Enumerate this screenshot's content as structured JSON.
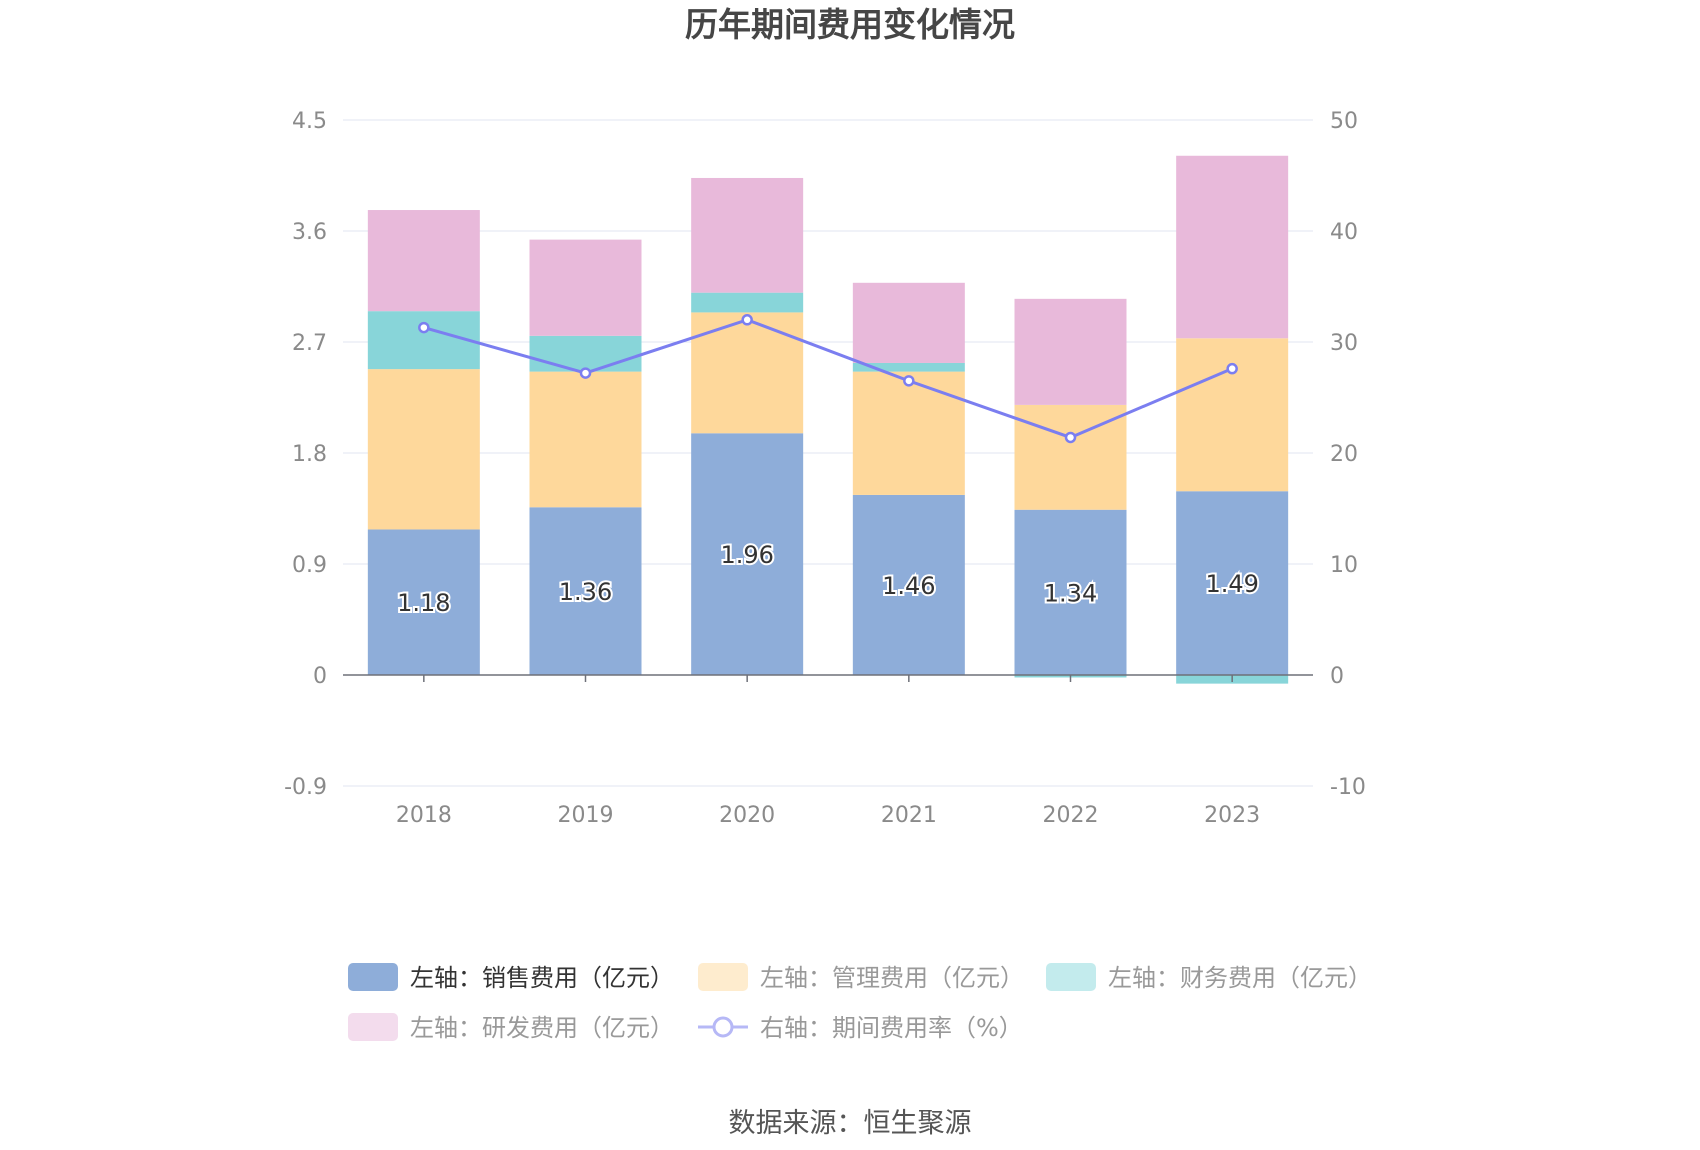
{
  "chart_data": {
    "type": "bar",
    "title": "历年期间费用变化情况",
    "categories": [
      "2018",
      "2019",
      "2020",
      "2021",
      "2022",
      "2023"
    ],
    "left_axis": {
      "ylim": [
        -0.9,
        4.5
      ],
      "ticks": [
        "4.5",
        "3.6",
        "2.7",
        "1.8",
        "0.9",
        "0",
        "-0.9"
      ],
      "tick_values": [
        4.5,
        3.6,
        2.7,
        1.8,
        0.9,
        0,
        -0.9
      ]
    },
    "right_axis": {
      "ylim": [
        -10,
        50
      ],
      "ticks": [
        "50",
        "40",
        "30",
        "20",
        "10",
        "0",
        "-10"
      ],
      "tick_values": [
        50,
        40,
        30,
        20,
        10,
        0,
        -10
      ]
    },
    "grid": true,
    "stacked": true,
    "series": [
      {
        "name": "左轴：销售费用（亿元）",
        "axis": "left",
        "color": "#8eadd9",
        "values": [
          1.18,
          1.36,
          1.96,
          1.46,
          1.34,
          1.49
        ],
        "labels": [
          "1.18",
          "1.36",
          "1.96",
          "1.46",
          "1.34",
          "1.49"
        ]
      },
      {
        "name": "左轴：管理费用（亿元）",
        "axis": "left",
        "color": "#fed89b",
        "values": [
          1.3,
          1.1,
          0.98,
          1.0,
          0.85,
          1.24
        ]
      },
      {
        "name": "左轴：财务费用（亿元）",
        "axis": "left",
        "color": "#88d5d9",
        "values": [
          0.47,
          0.29,
          0.16,
          0.07,
          -0.02,
          -0.07
        ]
      },
      {
        "name": "左轴：研发费用（亿元）",
        "axis": "left",
        "color": "#e8b9da",
        "values": [
          0.82,
          0.78,
          0.93,
          0.65,
          0.86,
          1.48
        ]
      },
      {
        "name": "右轴：期间费用率（%）",
        "axis": "right",
        "type": "line",
        "color": "#7b7ef0",
        "values": [
          31.3,
          27.2,
          32.0,
          26.5,
          21.4,
          27.6
        ]
      }
    ],
    "legend": {
      "placement": "bottom",
      "items": [
        {
          "label": "左轴：销售费用（亿元）",
          "color": "#8eadd9",
          "active": true,
          "kind": "bar"
        },
        {
          "label": "左轴：管理费用（亿元）",
          "color": "#feecce",
          "active": false,
          "kind": "bar"
        },
        {
          "label": "左轴：财务费用（亿元）",
          "color": "#c3ebed",
          "active": false,
          "kind": "bar"
        },
        {
          "label": "左轴：研发费用（亿元）",
          "color": "#f3dced",
          "active": false,
          "kind": "bar"
        },
        {
          "label": "右轴：期间费用率（%）",
          "color": "#b6b8f6",
          "active": false,
          "kind": "line"
        }
      ]
    },
    "source": "数据来源：恒生聚源"
  }
}
